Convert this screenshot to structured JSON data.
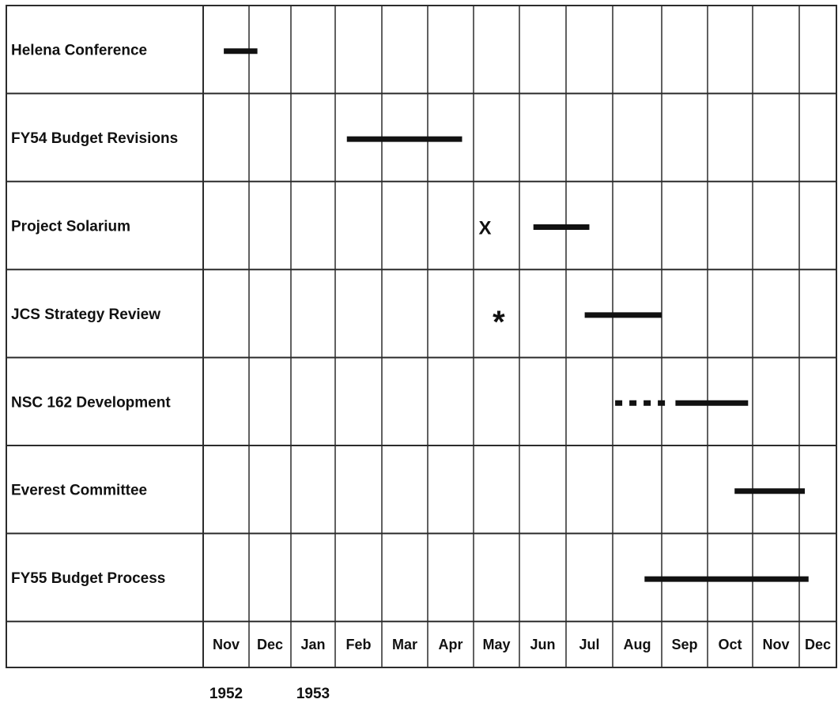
{
  "chart_data": {
    "type": "gantt",
    "colors": {
      "line": "#2b2b2b",
      "bar": "#111111",
      "text": "#111111"
    },
    "months": [
      "Nov",
      "Dec",
      "Jan",
      "Feb",
      "Mar",
      "Apr",
      "May",
      "Jun",
      "Jul",
      "Aug",
      "Sep",
      "Oct",
      "Nov",
      "Dec"
    ],
    "years": [
      {
        "label": "1952",
        "month_index": 0
      },
      {
        "label": "1953",
        "month_index": 2
      }
    ],
    "rows": [
      {
        "label": "Helena Conference",
        "bars": [
          {
            "start": 0.45,
            "end": 1.2,
            "style": "solid"
          }
        ]
      },
      {
        "label": "FY54 Budget Revisions",
        "bars": [
          {
            "start": 3.25,
            "end": 5.75,
            "style": "solid"
          }
        ]
      },
      {
        "label": "Project Solarium",
        "bars": [
          {
            "start": 7.3,
            "end": 8.5,
            "style": "solid"
          }
        ],
        "markers": [
          {
            "type": "x",
            "text": "X",
            "at": 6.25
          }
        ]
      },
      {
        "label": "JCS Strategy Review",
        "bars": [
          {
            "start": 8.4,
            "end": 10.0,
            "style": "solid"
          }
        ],
        "markers": [
          {
            "type": "star",
            "text": "*",
            "at": 6.55
          }
        ]
      },
      {
        "label": "NSC 162 Development",
        "bars": [
          {
            "start": 9.05,
            "end": 10.2,
            "style": "dotted"
          },
          {
            "start": 10.3,
            "end": 11.9,
            "style": "solid"
          }
        ]
      },
      {
        "label": "Everest Committee",
        "bars": [
          {
            "start": 11.6,
            "end": 13.15,
            "style": "solid"
          }
        ]
      },
      {
        "label": "FY55 Budget Process",
        "bars": [
          {
            "start": 9.65,
            "end": 13.25,
            "style": "solid"
          }
        ]
      }
    ]
  }
}
